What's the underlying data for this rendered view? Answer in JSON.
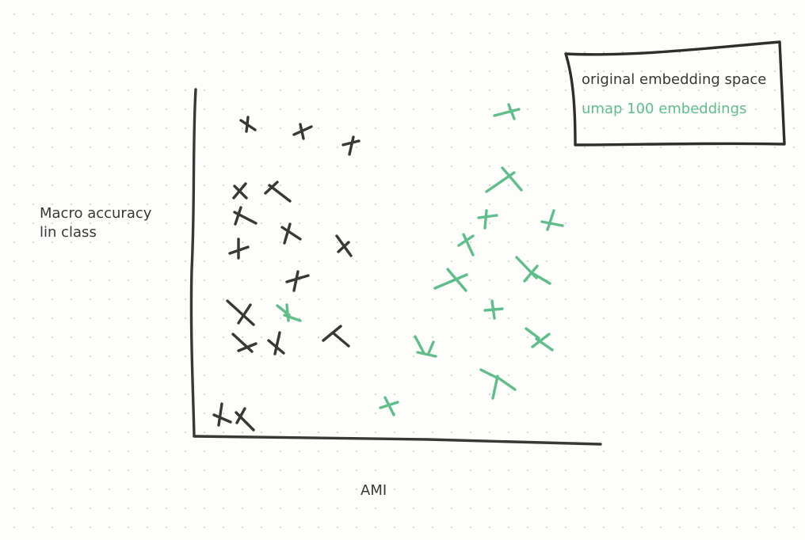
{
  "axes": {
    "y_label_lines": [
      "Macro accuracy",
      "lin class"
    ],
    "x_label": "AMI"
  },
  "legend": {
    "entries": [
      {
        "name": "original embedding space",
        "color": "#383836"
      },
      {
        "name": "umap 100 embeddings",
        "color": "#5fbe8a"
      }
    ]
  },
  "colors": {
    "ink": "#383836",
    "accent": "#5fbe8a",
    "background": "#fdfdfc",
    "grid_dot": "#d4d4d0"
  },
  "series": [
    {
      "name": "original embedding space",
      "count": 19
    },
    {
      "name": "umap 100 embeddings",
      "count": 17
    }
  ]
}
